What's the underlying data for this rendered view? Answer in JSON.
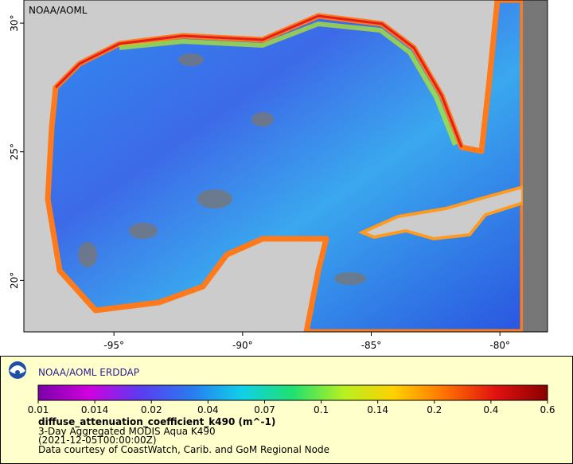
{
  "map": {
    "watermark": "NOAA/AOML",
    "xlim": [
      -98.5,
      -78.15
    ],
    "ylim": [
      18,
      30.9
    ],
    "xticks": [
      {
        "value": -95,
        "label": "-95°"
      },
      {
        "value": -90,
        "label": "-90°"
      },
      {
        "value": -85,
        "label": "-85°"
      },
      {
        "value": -80,
        "label": "-80°"
      }
    ],
    "yticks": [
      {
        "value": 20,
        "label": "20°"
      },
      {
        "value": 25,
        "label": "25°"
      },
      {
        "value": 30,
        "label": "30°"
      }
    ]
  },
  "legend": {
    "title": "NOAA/AOML ERDDAP",
    "colorbar_ticks": [
      0.01,
      0.014,
      0.02,
      0.04,
      0.07,
      0.1,
      0.14,
      0.2,
      0.4,
      0.6
    ],
    "variable": "diffuse_attenuation_coefficient_k490 (m^-1)",
    "lines": [
      "3-Day Aggregated MODIS Aqua K490",
      "(2021-12-05T00:00:00Z)",
      "Data courtesy of CoastWatch, Carib. and GoM Regional Node"
    ]
  }
}
